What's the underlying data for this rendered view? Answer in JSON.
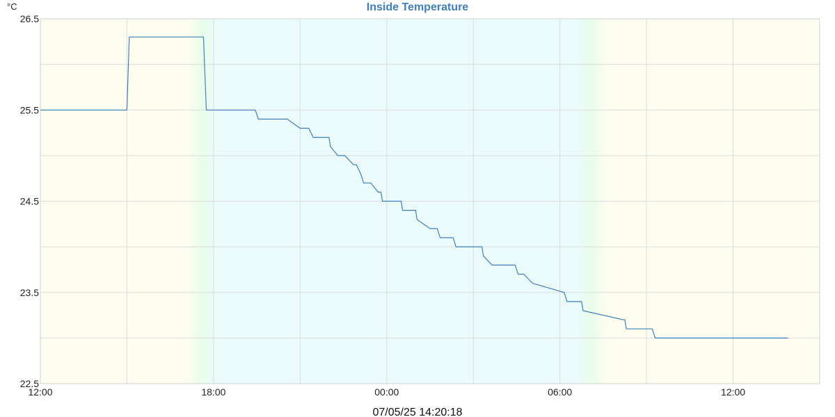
{
  "chart_data": {
    "type": "line",
    "title": "Inside Temperature",
    "ylabel": "°C",
    "xlabel": "",
    "timestamp": "07/05/25 14:20:18",
    "ylim": [
      22.5,
      26.5
    ],
    "xlim_hours": [
      0,
      27
    ],
    "grid": true,
    "y_ticks": [
      {
        "value": 22.5,
        "label": "22.5"
      },
      {
        "value": 23.0,
        "label": ""
      },
      {
        "value": 23.5,
        "label": "23.5"
      },
      {
        "value": 24.0,
        "label": ""
      },
      {
        "value": 24.5,
        "label": "24.5"
      },
      {
        "value": 25.0,
        "label": ""
      },
      {
        "value": 25.5,
        "label": "25.5"
      },
      {
        "value": 26.0,
        "label": ""
      },
      {
        "value": 26.5,
        "label": "26.5"
      }
    ],
    "x_ticks": [
      {
        "hour": 0,
        "label": "12:00"
      },
      {
        "hour": 3,
        "label": ""
      },
      {
        "hour": 6,
        "label": "18:00"
      },
      {
        "hour": 9,
        "label": ""
      },
      {
        "hour": 12,
        "label": "00:00"
      },
      {
        "hour": 15,
        "label": ""
      },
      {
        "hour": 18,
        "label": "06:00"
      },
      {
        "hour": 21,
        "label": ""
      },
      {
        "hour": 24,
        "label": "12:00"
      }
    ],
    "background_bands": [
      {
        "from": 0,
        "to": 5.1,
        "color": "#fdfdf0"
      },
      {
        "from": 5.1,
        "to": 6.1,
        "color": "gradient-day-to-night"
      },
      {
        "from": 6.1,
        "to": 18.6,
        "color": "#ebfbfb"
      },
      {
        "from": 18.6,
        "to": 19.6,
        "color": "gradient-night-to-day"
      },
      {
        "from": 19.6,
        "to": 27,
        "color": "#fdfdf0"
      }
    ],
    "series": [
      {
        "name": "",
        "color": "#3f7fbf",
        "x": [
          0,
          3.0,
          3.08,
          5.65,
          5.75,
          7.45,
          7.55,
          8.5,
          8.55,
          9.0,
          9.05,
          9.3,
          9.45,
          9.6,
          10.0,
          10.05,
          10.3,
          10.4,
          10.55,
          10.85,
          10.95,
          11.1,
          11.2,
          11.45,
          11.7,
          11.8,
          11.85,
          12.0,
          12.5,
          12.55,
          13.0,
          13.05,
          13.5,
          13.75,
          13.85,
          14.3,
          14.4,
          15.3,
          15.35,
          15.65,
          15.85,
          15.9,
          16.45,
          16.55,
          16.75,
          17.05,
          18.15,
          18.25,
          18.75,
          18.8,
          20.2,
          20.25,
          20.3,
          21.2,
          21.3,
          21.55,
          21.6,
          21.95,
          22.1,
          22.25,
          22.35,
          22.5,
          22.6,
          22.7,
          22.85,
          23.0,
          23.1,
          23.15,
          23.3,
          23.5,
          23.6,
          23.65,
          23.8,
          23.9,
          24.0,
          24.1,
          24.25,
          24.35,
          24.45,
          24.5,
          24.6,
          24.65,
          24.75,
          24.8,
          25.65,
          25.7,
          25.9
        ],
        "y": [
          25.5,
          25.5,
          26.3,
          26.3,
          25.5,
          25.5,
          25.4,
          25.4,
          25.4,
          25.3,
          25.3,
          25.3,
          25.2,
          25.2,
          25.2,
          25.1,
          25.0,
          25.0,
          25.0,
          24.9,
          24.9,
          24.8,
          24.7,
          24.7,
          24.6,
          24.6,
          24.5,
          24.5,
          24.5,
          24.4,
          24.4,
          24.3,
          24.2,
          24.2,
          24.1,
          24.1,
          24.0,
          24.0,
          23.9,
          23.8,
          23.8,
          23.8,
          23.8,
          23.7,
          23.7,
          23.6,
          23.5,
          23.4,
          23.4,
          23.3,
          23.2,
          23.2,
          23.1,
          23.1,
          23.0,
          23.0,
          23.0,
          23.0,
          23.0,
          23.0,
          23.0,
          23.0,
          23.0,
          23.0,
          23.0,
          23.0,
          23.0,
          23.0,
          23.0,
          23.0,
          23.0,
          23.0,
          23.0,
          23.0,
          23.0,
          23.0,
          23.0,
          23.0,
          23.0,
          23.0,
          23.0,
          23.0,
          23.0,
          23.0,
          23.0,
          23.0,
          23.0
        ]
      }
    ]
  },
  "colors": {
    "title": "#3f7fbf",
    "line": "#3f7fbf",
    "grid": "#dcdcdc",
    "day": "#fdfdf0",
    "night": "#ebfbfb",
    "twilight": "#eafcea"
  }
}
